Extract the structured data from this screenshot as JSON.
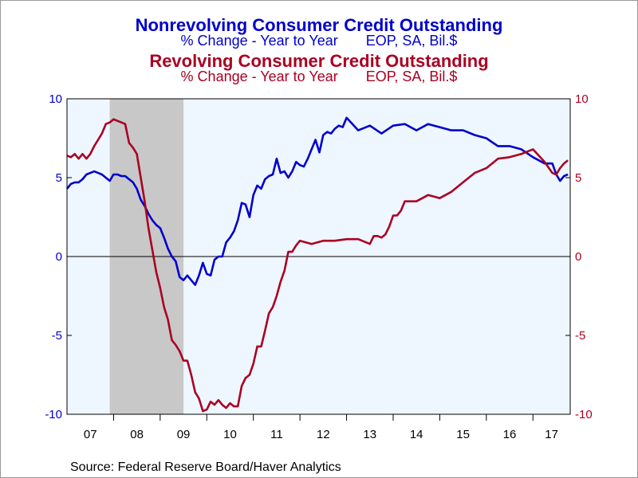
{
  "titles": {
    "title1": "Nonrevolving Consumer Credit Outstanding",
    "subtitle1": "% Change - Year to Year       EOP, SA, Bil.$",
    "title2": "Revolving Consumer Credit Outstanding",
    "subtitle2": "% Change - Year to Year       EOP, SA, Bil.$"
  },
  "source": "Source:  Federal Reserve Board/Haver Analytics",
  "chart_data": {
    "type": "line",
    "title": "Nonrevolving Consumer Credit Outstanding",
    "xlabel": "",
    "ylabel": "",
    "xlim": [
      2007.0,
      2017.8
    ],
    "ylim": [
      -10,
      10
    ],
    "y_ticks_left": [
      10,
      5,
      0,
      -5,
      -10
    ],
    "y_ticks_right": [
      10,
      5,
      0,
      -5,
      -10
    ],
    "x_tick_labels": [
      "07",
      "08",
      "09",
      "10",
      "11",
      "12",
      "13",
      "14",
      "15",
      "16",
      "17"
    ],
    "x_tick_years": [
      2007,
      2008,
      2009,
      2010,
      2011,
      2012,
      2013,
      2014,
      2015,
      2016,
      2017
    ],
    "recession_shading": [
      [
        2007.917,
        2009.5
      ]
    ],
    "plot_background": "#eef6ff",
    "recession_color": "#c8c8c8",
    "zero_line": true,
    "series": [
      {
        "name": "Nonrevolving Consumer Credit Outstanding",
        "color": "#0000cc",
        "x": [
          2007.0,
          2007.083,
          2007.167,
          2007.25,
          2007.333,
          2007.417,
          2007.5,
          2007.583,
          2007.667,
          2007.75,
          2007.833,
          2007.917,
          2008.0,
          2008.083,
          2008.167,
          2008.25,
          2008.333,
          2008.417,
          2008.5,
          2008.583,
          2008.667,
          2008.75,
          2008.833,
          2008.917,
          2009.0,
          2009.083,
          2009.167,
          2009.25,
          2009.333,
          2009.417,
          2009.5,
          2009.583,
          2009.667,
          2009.75,
          2009.833,
          2009.917,
          2010.0,
          2010.083,
          2010.167,
          2010.25,
          2010.333,
          2010.417,
          2010.5,
          2010.583,
          2010.667,
          2010.75,
          2010.833,
          2010.917,
          2011.0,
          2011.083,
          2011.167,
          2011.25,
          2011.333,
          2011.417,
          2011.5,
          2011.583,
          2011.667,
          2011.75,
          2011.833,
          2011.917,
          2012.0,
          2012.083,
          2012.167,
          2012.25,
          2012.333,
          2012.417,
          2012.5,
          2012.583,
          2012.667,
          2012.75,
          2012.833,
          2012.917,
          2013.0,
          2013.25,
          2013.5,
          2013.75,
          2014.0,
          2014.25,
          2014.5,
          2014.75,
          2015.0,
          2015.25,
          2015.5,
          2015.75,
          2016.0,
          2016.25,
          2016.5,
          2016.75,
          2017.0,
          2017.25,
          2017.417,
          2017.5,
          2017.583,
          2017.667,
          2017.75
        ],
        "values": [
          4.3,
          4.6,
          4.7,
          4.7,
          4.9,
          5.2,
          5.3,
          5.4,
          5.3,
          5.2,
          5.0,
          4.8,
          5.2,
          5.2,
          5.1,
          5.1,
          4.9,
          4.7,
          4.3,
          3.6,
          3.2,
          2.7,
          2.3,
          2.0,
          1.8,
          1.2,
          0.5,
          0.0,
          -0.3,
          -1.3,
          -1.5,
          -1.2,
          -1.5,
          -1.8,
          -1.2,
          -0.4,
          -1.1,
          -1.2,
          -0.2,
          0.0,
          0.0,
          0.9,
          1.2,
          1.6,
          2.3,
          3.4,
          3.3,
          2.5,
          3.9,
          4.5,
          4.3,
          4.9,
          5.1,
          5.2,
          6.2,
          5.3,
          5.4,
          5.0,
          5.4,
          6.0,
          5.8,
          5.7,
          6.2,
          6.8,
          7.4,
          6.6,
          7.7,
          7.9,
          7.8,
          8.1,
          8.3,
          8.2,
          8.8,
          8.0,
          8.3,
          7.8,
          8.3,
          8.4,
          8.0,
          8.4,
          8.2,
          8.0,
          8.0,
          7.7,
          7.5,
          7.0,
          7.0,
          6.8,
          6.3,
          5.9,
          5.9,
          5.2,
          4.8,
          5.1,
          5.2
        ]
      },
      {
        "name": "Revolving Consumer Credit Outstanding",
        "color": "#aa0022",
        "x": [
          2007.0,
          2007.083,
          2007.167,
          2007.25,
          2007.333,
          2007.417,
          2007.5,
          2007.583,
          2007.667,
          2007.75,
          2007.833,
          2007.917,
          2008.0,
          2008.083,
          2008.167,
          2008.25,
          2008.333,
          2008.417,
          2008.5,
          2008.583,
          2008.667,
          2008.75,
          2008.833,
          2008.917,
          2009.0,
          2009.083,
          2009.167,
          2009.25,
          2009.333,
          2009.417,
          2009.5,
          2009.583,
          2009.667,
          2009.75,
          2009.833,
          2009.917,
          2010.0,
          2010.083,
          2010.167,
          2010.25,
          2010.333,
          2010.417,
          2010.5,
          2010.583,
          2010.667,
          2010.75,
          2010.833,
          2010.917,
          2011.0,
          2011.083,
          2011.167,
          2011.25,
          2011.333,
          2011.417,
          2011.5,
          2011.583,
          2011.667,
          2011.75,
          2011.833,
          2011.917,
          2012.0,
          2012.25,
          2012.5,
          2012.75,
          2013.0,
          2013.25,
          2013.5,
          2013.583,
          2013.667,
          2013.75,
          2013.833,
          2013.917,
          2014.0,
          2014.083,
          2014.167,
          2014.25,
          2014.5,
          2014.75,
          2015.0,
          2015.25,
          2015.5,
          2015.75,
          2016.0,
          2016.25,
          2016.5,
          2016.75,
          2017.0,
          2017.25,
          2017.417,
          2017.5,
          2017.583,
          2017.667,
          2017.75
        ],
        "values": [
          6.4,
          6.3,
          6.5,
          6.2,
          6.5,
          6.2,
          6.5,
          7.0,
          7.4,
          7.8,
          8.4,
          8.5,
          8.7,
          8.6,
          8.5,
          8.4,
          7.2,
          6.9,
          6.5,
          5.0,
          3.5,
          1.8,
          0.4,
          -1.0,
          -2.0,
          -3.2,
          -4.0,
          -5.3,
          -5.6,
          -6.0,
          -6.6,
          -6.6,
          -7.5,
          -8.6,
          -9.0,
          -9.8,
          -9.7,
          -9.2,
          -9.4,
          -9.1,
          -9.4,
          -9.6,
          -9.3,
          -9.5,
          -9.5,
          -8.2,
          -7.7,
          -7.5,
          -6.8,
          -5.7,
          -5.7,
          -4.7,
          -3.6,
          -3.2,
          -2.5,
          -1.6,
          -0.9,
          0.3,
          0.3,
          0.7,
          1.0,
          0.8,
          1.0,
          1.0,
          1.1,
          1.1,
          0.8,
          1.3,
          1.3,
          1.2,
          1.4,
          1.9,
          2.6,
          2.6,
          2.9,
          3.5,
          3.5,
          3.9,
          3.7,
          4.1,
          4.7,
          5.3,
          5.6,
          6.2,
          6.3,
          6.5,
          6.8,
          6.0,
          5.3,
          5.2,
          5.6,
          5.9,
          6.1
        ]
      }
    ]
  }
}
